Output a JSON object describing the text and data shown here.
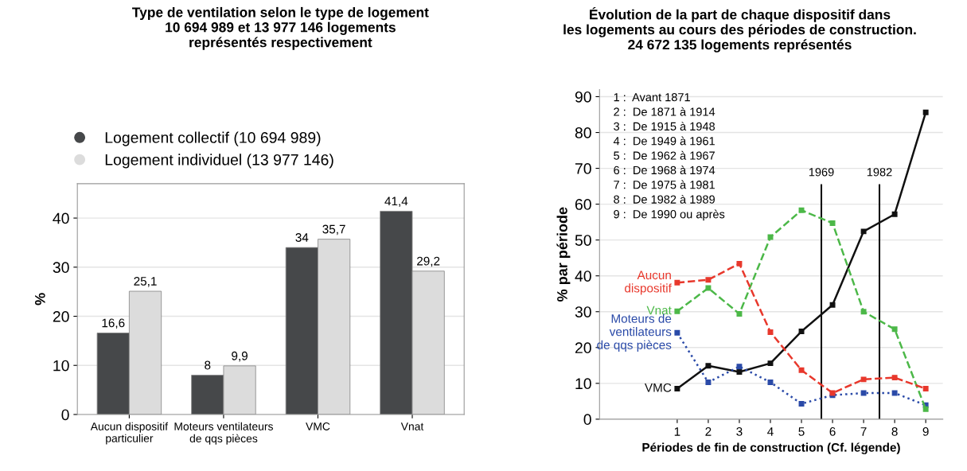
{
  "chart_data": [
    {
      "type": "bar",
      "title": "Type de ventilation selon le type de logement\n10 694 989 et 13 977 146 logements\nreprésentés respectivement",
      "ylabel": "%",
      "categories": [
        "Aucun dispositif\nparticulier",
        "Moteurs ventilateurs\nde qqs pièces",
        "VMC",
        "Vnat"
      ],
      "series": [
        {
          "name": "Logement collectif (10 694 989)",
          "color": "#46484a",
          "values": [
            16.6,
            8,
            34,
            41.4
          ],
          "value_labels": [
            "16,6",
            "8",
            "34",
            "41,4"
          ]
        },
        {
          "name": "Logement individuel (13 977 146)",
          "color": "#dcdcdc",
          "values": [
            25.1,
            9.9,
            35.7,
            29.2
          ],
          "value_labels": [
            "25,1",
            "9,9",
            "35,7",
            "29,2"
          ]
        }
      ],
      "ylim": [
        0,
        47
      ],
      "yticks": [
        0,
        10,
        20,
        30,
        40
      ],
      "grid": "y",
      "legend": "top"
    },
    {
      "type": "line",
      "title": "Évolution de la part de chaque dispositif dans\nles logements au cours des périodes de construction.\n24 672 135 logements représentés",
      "xlabel": "Périodes de fin de construction (Cf. légende)",
      "ylabel": "% par période",
      "x": [
        1,
        2,
        3,
        4,
        5,
        6,
        7,
        8,
        9
      ],
      "series": [
        {
          "name": "Aucun\ndispositif",
          "color": "#e8382c",
          "line_style": "dashed",
          "values": [
            38.1,
            38.9,
            43.4,
            24.3,
            13.7,
            7.3,
            11.1,
            11.6,
            8.5
          ]
        },
        {
          "name": "Vnat",
          "color": "#4cb848",
          "line_style": "dashed",
          "values": [
            30.1,
            36.6,
            29.4,
            50.8,
            58.3,
            54.7,
            30.0,
            25.1,
            2.8
          ]
        },
        {
          "name": "Moteurs de\nventilateurs\nde qqs pièces",
          "color": "#2a4aa8",
          "line_style": "dotted",
          "values": [
            24.1,
            10.3,
            14.7,
            10.3,
            4.3,
            6.7,
            7.3,
            7.3,
            3.9
          ]
        },
        {
          "name": "VMC",
          "color": "#111111",
          "line_style": "solid",
          "values": [
            8.5,
            14.9,
            13.2,
            15.6,
            24.5,
            31.9,
            52.4,
            57.2,
            85.6
          ]
        }
      ],
      "xlim": [
        -1.5,
        9.55
      ],
      "xticks": [
        1,
        2,
        3,
        4,
        5,
        6,
        7,
        8,
        9
      ],
      "ylim": [
        0,
        92
      ],
      "yticks": [
        0,
        10,
        20,
        30,
        40,
        50,
        60,
        70,
        80,
        90
      ],
      "ref_lines": [
        {
          "axis": "x",
          "value": 5.64,
          "color": "#111111"
        },
        {
          "axis": "x",
          "value": 7.51,
          "color": "#111111"
        }
      ],
      "annotations": [
        "1969",
        "1982",
        "1 :  Avant 1871\n2 :  De 1871 à 1914\n3 :  De 1915 à 1948\n4 :  De 1949 à 1961\n5 :  De 1962 à 1967\n6 :  De 1968 à 1974\n7 :  De 1975 à 1981\n8 :  De 1982 à 1989\n9 :  De 1990 ou après"
      ],
      "grid": "y",
      "marker": "square",
      "legend": false
    }
  ]
}
